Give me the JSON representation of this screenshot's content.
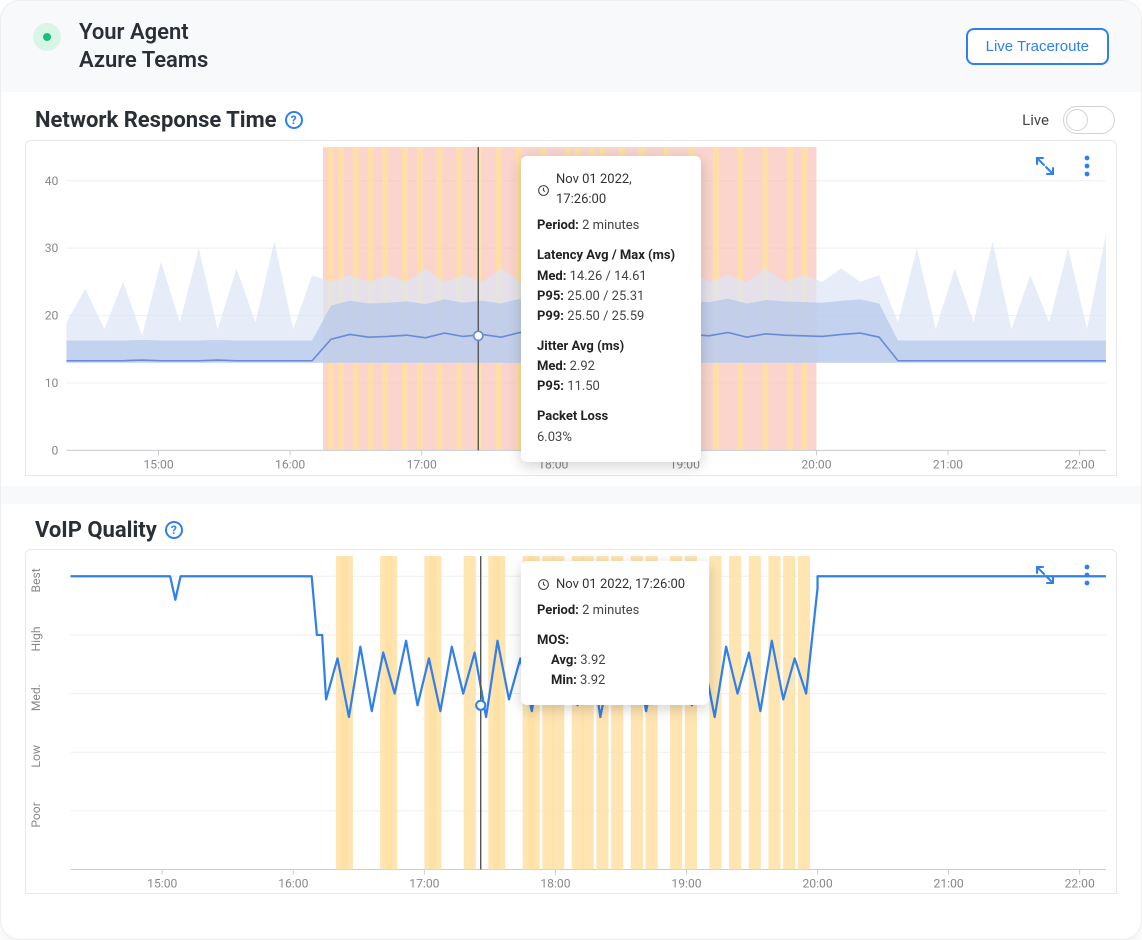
{
  "header": {
    "title": "Your Agent",
    "subtitle": "Azure Teams",
    "traceroute_label": "Live Traceroute",
    "status_color": "#18c07a"
  },
  "colors": {
    "accent": "#2f80ed",
    "grid": "#efefef",
    "axis": "#c9ccd1",
    "line_blue": "#6a8ad6",
    "area_blue_dark": "#b4c6ea",
    "area_blue_light": "#dbe5f6",
    "voip_line": "#2f80ed",
    "overlay_red": "#f7b8ac",
    "overlay_orange": "#ffe0a3",
    "cursor": "#555"
  },
  "network_chart": {
    "title": "Network Response Time",
    "live_label": "Live",
    "x_ticks": [
      "15:00",
      "16:00",
      "17:00",
      "18:00",
      "19:00",
      "20:00",
      "21:00",
      "22:00"
    ],
    "y_ticks": [
      0,
      10,
      20,
      30,
      40
    ],
    "ylim": [
      0,
      45
    ],
    "overlay_range_hours": [
      16.25,
      20.0
    ],
    "cursor_hour": 17.43,
    "med_line": [
      13.3,
      13.3,
      13.3,
      13.3,
      13.4,
      13.3,
      13.3,
      13.3,
      13.4,
      13.3,
      13.3,
      13.3,
      13.3,
      13.3,
      16.5,
      17.2,
      16.8,
      16.9,
      17.1,
      16.7,
      17.4,
      16.9,
      17.2,
      16.8,
      17.5,
      16.9,
      17.3,
      17.0,
      17.6,
      16.8,
      17.1,
      17.4,
      16.9,
      17.2,
      17.0,
      17.5,
      16.8,
      17.3,
      17.1,
      17.0,
      16.9,
      17.2,
      17.4,
      16.8,
      13.3,
      13.3,
      13.3,
      13.3,
      13.3,
      13.3,
      13.3,
      13.3,
      13.3,
      13.3,
      13.3,
      13.3
    ],
    "p95_series": [
      19,
      24,
      18,
      25,
      17,
      28,
      19,
      30,
      18,
      27,
      19,
      31,
      18,
      26,
      25,
      26,
      25,
      26,
      25,
      27,
      25,
      26,
      25,
      27,
      25,
      26,
      25,
      26,
      25,
      27,
      25,
      26,
      25,
      27,
      25,
      26,
      25,
      27,
      25,
      26,
      25,
      27,
      25,
      26,
      19,
      30,
      18,
      27,
      19,
      31,
      18,
      26,
      19,
      30,
      18,
      32
    ],
    "jitter_spikes": [
      0.02,
      0.05,
      0.09,
      0.13,
      0.18,
      0.23,
      0.28,
      0.33,
      0.38,
      0.43,
      0.48,
      0.53,
      0.58,
      0.63,
      0.81,
      0.82,
      0.84,
      0.86,
      0.88,
      0.9,
      0.92,
      0.94,
      0.96,
      0.98,
      0.985
    ],
    "tooltip": {
      "time": "Nov 01 2022, 17:26:00",
      "period_label": "Period:",
      "period_value": "2 minutes",
      "latency_header": "Latency Avg / Max (ms)",
      "med_label": "Med:",
      "med_value": "14.26 / 14.61",
      "p95_label": "P95:",
      "p95_value": "25.00 / 25.31",
      "p99_label": "P99:",
      "p99_value": "25.50 / 25.59",
      "jitter_header": "Jitter Avg (ms)",
      "jmed_label": "Med:",
      "jmed_value": "2.92",
      "jp95_label": "P95:",
      "jp95_value": "11.50",
      "loss_header": "Packet Loss",
      "loss_value": "6.03%"
    }
  },
  "voip_chart": {
    "title": "VoIP Quality",
    "y_ticks": [
      "Best",
      "High",
      "Med.",
      "Low",
      "Poor"
    ],
    "x_ticks": [
      "15:00",
      "16:00",
      "17:00",
      "18:00",
      "19:00",
      "20:00",
      "21:00",
      "22:00"
    ],
    "overlay_range_hours": [
      16.25,
      20.0
    ],
    "cursor_hour": 17.43,
    "baseline_level": 0,
    "incident_levels": [
      2.1,
      1.4,
      2.4,
      1.2,
      2.3,
      1.3,
      2.0,
      1.1,
      2.2,
      1.4,
      2.3,
      1.2,
      2.0,
      1.3,
      2.4,
      1.1,
      2.1,
      1.4,
      2.3,
      1.2,
      2.0,
      1.3,
      2.2,
      1.1,
      2.4,
      1.4,
      2.0,
      1.2,
      2.3,
      1.3,
      2.1,
      1.1,
      2.2,
      1.4,
      2.4,
      1.2,
      2.0,
      1.3,
      2.3,
      1.1,
      2.1,
      1.4,
      2.0,
      0.2
    ],
    "orange_bars_relpos": [
      0.02,
      0.03,
      0.11,
      0.12,
      0.2,
      0.21,
      0.28,
      0.33,
      0.34,
      0.4,
      0.41,
      0.44,
      0.46,
      0.5,
      0.52,
      0.55,
      0.58,
      0.62,
      0.65,
      0.7,
      0.73,
      0.78,
      0.82,
      0.86,
      0.9,
      0.93,
      0.96
    ],
    "dips": [
      {
        "hour": 15.1,
        "depth": 0.4
      },
      {
        "hour": 16.2,
        "depth": 1.0
      }
    ],
    "tooltip": {
      "time": "Nov 01 2022, 17:26:00",
      "period_label": "Period:",
      "period_value": "2 minutes",
      "mos_header": "MOS:",
      "avg_label": "Avg:",
      "avg_value": "3.92",
      "min_label": "Min:",
      "min_value": "3.92"
    }
  }
}
